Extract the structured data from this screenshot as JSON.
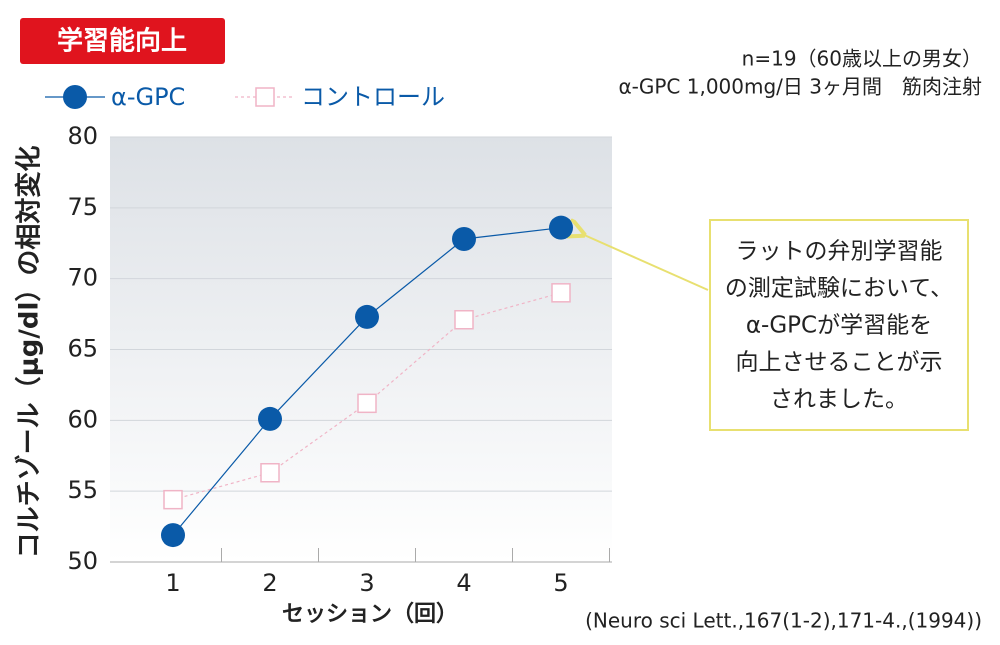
{
  "chart_data": {
    "type": "line",
    "title": "学習能向上",
    "subtitle_lines": [
      "n=19（60歳以上の男女）",
      "α-GPC 1,000mg/日 3ヶ月間　筋肉注射"
    ],
    "y_label": "コルチゾール（μg/dl）の相対変化",
    "x_label": "セッション（回）",
    "source": "(Neuro sci Lett.,167(1-2),171-4.,(1994))",
    "annotation_lines": [
      "ラットの弁別学習能",
      "の測定試験において、",
      "α-GPCが学習能を",
      "向上させることが示",
      "されました。"
    ],
    "categories": [
      "1",
      "2",
      "3",
      "4",
      "5"
    ],
    "series": [
      {
        "name": "α-GPC",
        "color": "#0a5aa8",
        "marker": "circle",
        "values": [
          51.9,
          60.1,
          67.3,
          72.8,
          73.6
        ]
      },
      {
        "name": "コントロール",
        "color": "#f0b4c6",
        "marker": "square",
        "values": [
          54.4,
          56.3,
          61.2,
          67.1,
          69.0
        ]
      }
    ],
    "ylim": [
      50,
      80
    ],
    "yticks": [
      50,
      55,
      60,
      65,
      70,
      75,
      80
    ],
    "grid": true
  }
}
